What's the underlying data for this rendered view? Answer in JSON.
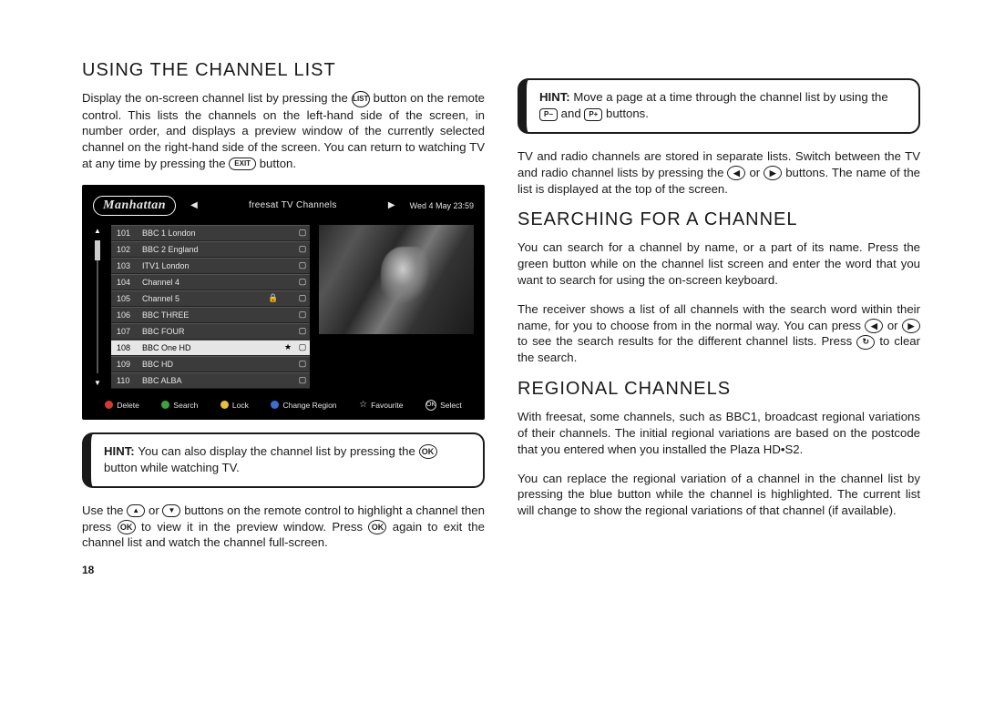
{
  "page_number": "18",
  "headings": {
    "using": "USING THE CHANNEL LIST",
    "searching": "SEARCHING FOR A CHANNEL",
    "regional": "REGIONAL CHANNELS"
  },
  "buttons": {
    "list": "LIST",
    "exit": "EXIT",
    "ok": "OK",
    "up": "▲",
    "down": "▼",
    "left": "◀",
    "right": "▶",
    "pminus": "P−",
    "pplus": "P+",
    "refresh": "↻"
  },
  "paragraphs": {
    "using_1a": "Display the on-screen channel list by pressing the ",
    "using_1b": " button on the remote control. This lists the channels on the left-hand side of the screen, in number order, and displays a preview window of the currently selected channel on the right-hand side of the screen. You can return to watching TV at any time by pressing the ",
    "using_1c": " button.",
    "hint1_a": "HINT: ",
    "hint1_b": "You can also display the channel list by pressing the ",
    "hint1_c": " button while watching TV.",
    "using_2a": "Use the ",
    "using_2b": " or ",
    "using_2c": " buttons on the remote control to highlight a channel then press ",
    "using_2d": " to view it in the preview window. Press ",
    "using_2e": " again to exit the channel list and watch the channel full-screen.",
    "hint2_a": "HINT: ",
    "hint2_b": "Move a page at a time through the channel list by using the ",
    "hint2_c": " and ",
    "hint2_d": " buttons.",
    "switch_a": "TV and radio channels are stored in separate lists. Switch between the TV and radio channel lists by pressing the ",
    "switch_b": " or ",
    "switch_c": " buttons. The name of the list is displayed at the top of the screen.",
    "search_1": "You can search for a channel by name, or a part of its name. Press the green button while on the channel list screen and enter the word that you want to search for using the on-screen keyboard.",
    "search_2a": "The receiver shows a list of all channels with the search word within their name, for you to choose from in the normal way. You can press ",
    "search_2b": " or ",
    "search_2c": " to see the search results for the different channel lists. Press ",
    "search_2d": " to clear the search.",
    "regional_1": "With freesat, some channels, such as BBC1, broadcast regional variations of their channels. The initial regional variations are based on the postcode that you entered when you installed the Plaza HD•S2.",
    "regional_2": "You can replace the regional variation of a channel in the channel list by pressing the blue button while the channel is highlighted. The current list will change to show the regional variations of that channel (if available)."
  },
  "tv": {
    "logo": "Manhattan",
    "title": "freesat TV Channels",
    "time": "Wed 4 May 23:59",
    "channels": [
      {
        "num": "101",
        "name": "BBC 1 London",
        "lock": false,
        "fav": false,
        "tv": true
      },
      {
        "num": "102",
        "name": "BBC 2 England",
        "lock": false,
        "fav": false,
        "tv": true
      },
      {
        "num": "103",
        "name": "ITV1 London",
        "lock": false,
        "fav": false,
        "tv": true
      },
      {
        "num": "104",
        "name": "Channel 4",
        "lock": false,
        "fav": false,
        "tv": true
      },
      {
        "num": "105",
        "name": "Channel 5",
        "lock": true,
        "fav": false,
        "tv": true
      },
      {
        "num": "106",
        "name": "BBC THREE",
        "lock": false,
        "fav": false,
        "tv": true
      },
      {
        "num": "107",
        "name": "BBC FOUR",
        "lock": false,
        "fav": false,
        "tv": true
      },
      {
        "num": "108",
        "name": "BBC One HD",
        "lock": false,
        "fav": true,
        "tv": true
      },
      {
        "num": "109",
        "name": "BBC HD",
        "lock": false,
        "fav": false,
        "tv": true
      },
      {
        "num": "110",
        "name": "BBC ALBA",
        "lock": false,
        "fav": false,
        "tv": true
      }
    ],
    "selected_index": 7,
    "footer": {
      "delete": {
        "label": "Delete",
        "color": "#d63a2e"
      },
      "search": {
        "label": "Search",
        "color": "#3aa63a"
      },
      "lock": {
        "label": "Lock",
        "color": "#e6c23a"
      },
      "region": {
        "label": "Change Region",
        "color": "#3a6fd6"
      },
      "favourite": {
        "label": "Favourite"
      },
      "select": {
        "label": "Select"
      }
    }
  }
}
